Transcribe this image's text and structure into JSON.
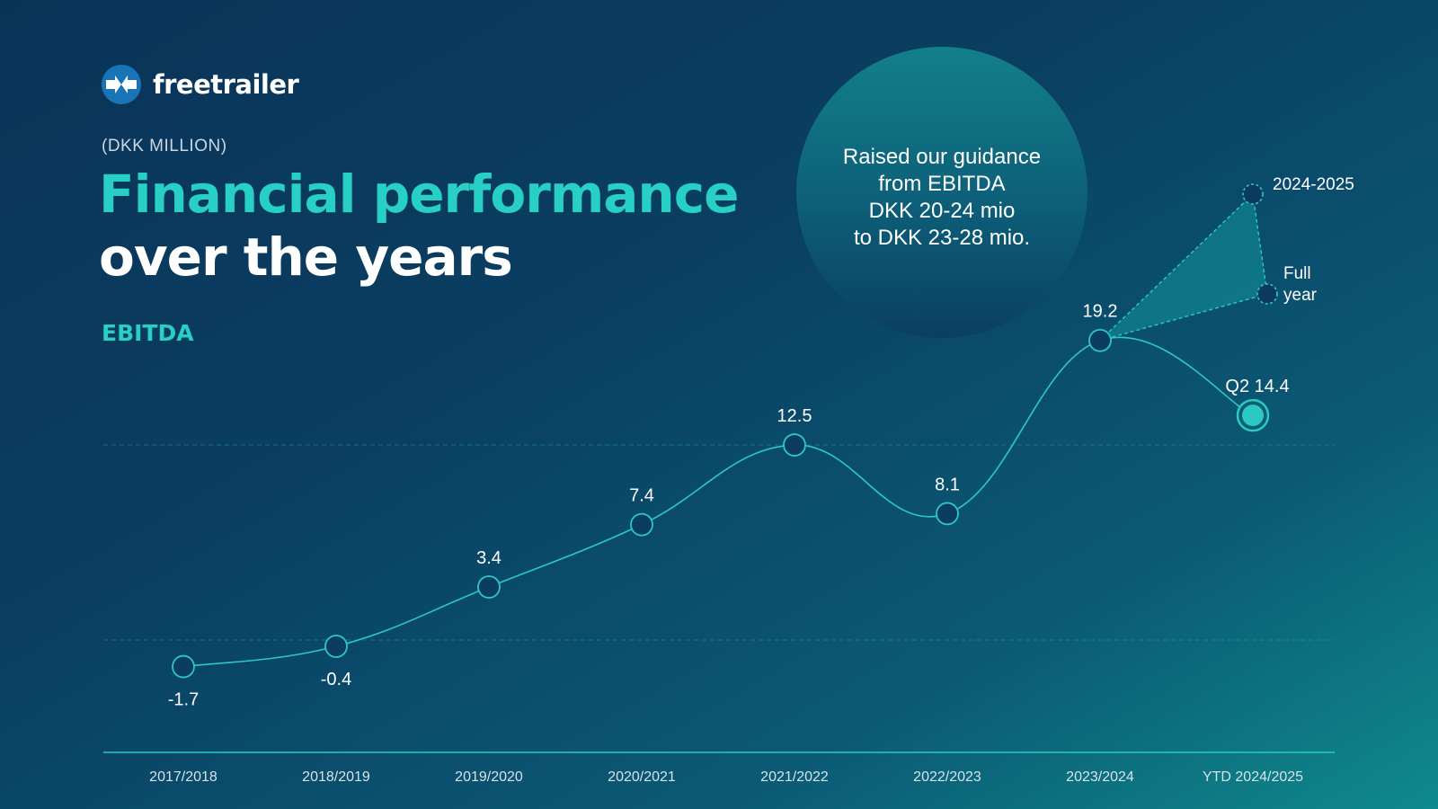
{
  "brand": {
    "name": "freetrailer"
  },
  "header": {
    "unit": "(DKK MILLION)",
    "title_line1": "Financial performance",
    "title_line2": "over the years",
    "metric": "EBITDA"
  },
  "callout": {
    "lines": [
      "Raised our guidance",
      "from EBITDA",
      "DKK 20-24 mio",
      "to DKK 23-28 mio."
    ]
  },
  "colors": {
    "accent": "#27cfc4",
    "line": "#2cc9c2",
    "background_dark": "#0a3358",
    "background_light": "#0f8a8c"
  },
  "chart_data": {
    "type": "line",
    "title": "EBITDA",
    "ylabel": "",
    "unit": "DKK million",
    "categories": [
      "2017/2018",
      "2018/2019",
      "2019/2020",
      "2020/2021",
      "2021/2022",
      "2022/2023",
      "2023/2024",
      "YTD 2024/2025"
    ],
    "values": [
      -1.7,
      -0.4,
      3.4,
      7.4,
      12.5,
      8.1,
      19.2,
      14.4
    ],
    "data_labels": [
      "-1.7",
      "-0.4",
      "3.4",
      "7.4",
      "12.5",
      "8.1",
      "19.2",
      "Q2 14.4"
    ],
    "grid_lines_at": [
      0,
      12.5
    ],
    "projection": {
      "label_top": "2024-2025",
      "label_bottom_line1": "Full",
      "label_bottom_line2": "year",
      "guidance_range": [
        23,
        28
      ]
    },
    "highlight_point": "YTD 2024/2025"
  }
}
